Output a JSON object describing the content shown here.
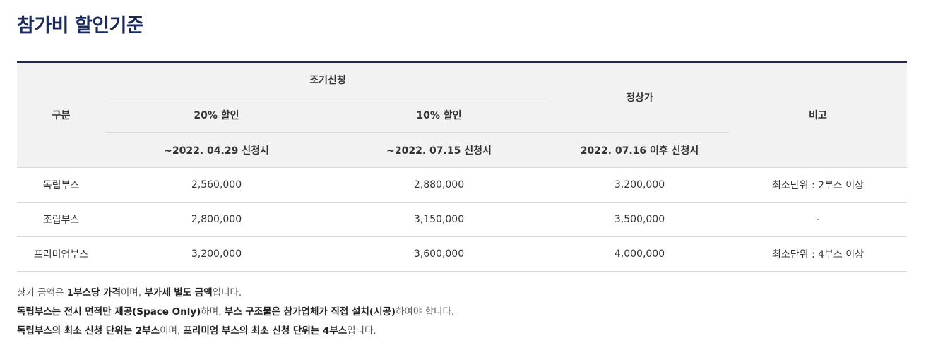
{
  "title": "참가비 할인기준",
  "table": {
    "headers": {
      "category": "구분",
      "early": "조기신청",
      "discount20": "20% 할인",
      "discount10": "10% 할인",
      "regular": "정상가",
      "remarks": "비고",
      "date20": "~2022. 04.29 신청시",
      "date10": "~2022. 07.15 신청시",
      "dateRegular": "2022. 07.16 이후 신청시"
    },
    "rows": [
      {
        "type": "독립부스",
        "p20": "2,560,000",
        "p10": "2,880,000",
        "regular": "3,200,000",
        "note": "최소단위 : 2부스 이상"
      },
      {
        "type": "조립부스",
        "p20": "2,800,000",
        "p10": "3,150,000",
        "regular": "3,500,000",
        "note": "-"
      },
      {
        "type": "프리미엄부스",
        "p20": "3,200,000",
        "p10": "3,600,000",
        "regular": "4,000,000",
        "note": "최소단위 : 4부스 이상"
      }
    ]
  },
  "notes": {
    "line1": {
      "a": "상기 금액은 ",
      "b": "1부스당 가격",
      "c": "이며, ",
      "d": "부가세 별도 금액",
      "e": "입니다."
    },
    "line2": {
      "a": "독립부스는 전시 면적만 제공(Space Only)",
      "b": "하며, ",
      "c": "부스 구조물은 참가업체가 직접 설치(시공)",
      "d": "하여야 합니다."
    },
    "line3": {
      "a": "독립부스의 최소 신청 단위는 2부스",
      "b": "이며, ",
      "c": "프리미엄 부스의 최소 신청 단위는 4부스",
      "d": "입니다."
    }
  }
}
